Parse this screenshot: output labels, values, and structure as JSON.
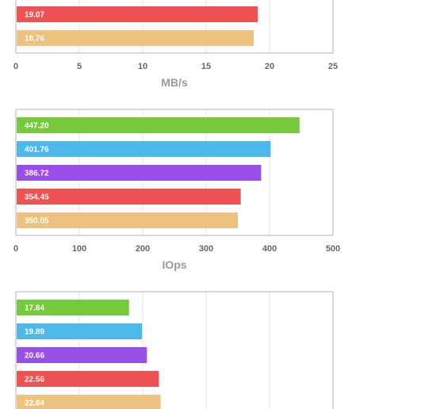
{
  "colors": {
    "green": "#76c83c",
    "blue": "#4db8ea",
    "purple": "#9a4ee8",
    "red": "#ee5253",
    "orange": "#ecc27e",
    "grid": "#e6e6e6",
    "frame": "#b3b3b3",
    "tick_text": "#666666",
    "axis_label": "#999999",
    "value_text": "#ffffff"
  },
  "chart_data": [
    {
      "type": "bar",
      "orientation": "horizontal",
      "title": "",
      "xlabel": "MB/s",
      "ylabel": "",
      "xlim": [
        0,
        25
      ],
      "xticks": [
        "0",
        "5",
        "10",
        "15",
        "20",
        "25"
      ],
      "grid": true,
      "bars": [
        {
          "value": 19.07,
          "label": "19.07",
          "color": "#ee5253"
        },
        {
          "value": 18.76,
          "label": "18.76",
          "color": "#ecc27e"
        }
      ]
    },
    {
      "type": "bar",
      "orientation": "horizontal",
      "title": "",
      "xlabel": "IOps",
      "ylabel": "",
      "xlim": [
        0,
        500
      ],
      "xticks": [
        "0",
        "100",
        "200",
        "300",
        "400",
        "500"
      ],
      "grid": true,
      "bars": [
        {
          "value": 447.2,
          "label": "447.20",
          "color": "#76c83c"
        },
        {
          "value": 401.76,
          "label": "401.76",
          "color": "#4db8ea"
        },
        {
          "value": 386.72,
          "label": "386.72",
          "color": "#9a4ee8"
        },
        {
          "value": 354.45,
          "label": "354.45",
          "color": "#ee5253"
        },
        {
          "value": 350.05,
          "label": "350.05",
          "color": "#ecc27e"
        }
      ]
    },
    {
      "type": "bar",
      "orientation": "horizontal",
      "title": "",
      "xlabel": "",
      "ylabel": "",
      "xlim": [
        0,
        50
      ],
      "xticks": [],
      "grid": true,
      "bars": [
        {
          "value": 17.84,
          "label": "17.84",
          "color": "#76c83c"
        },
        {
          "value": 19.89,
          "label": "19.89",
          "color": "#4db8ea"
        },
        {
          "value": 20.66,
          "label": "20.66",
          "color": "#9a4ee8"
        },
        {
          "value": 22.56,
          "label": "22.56",
          "color": "#ee5253"
        },
        {
          "value": 22.84,
          "label": "22.84",
          "color": "#ecc27e"
        }
      ]
    }
  ]
}
